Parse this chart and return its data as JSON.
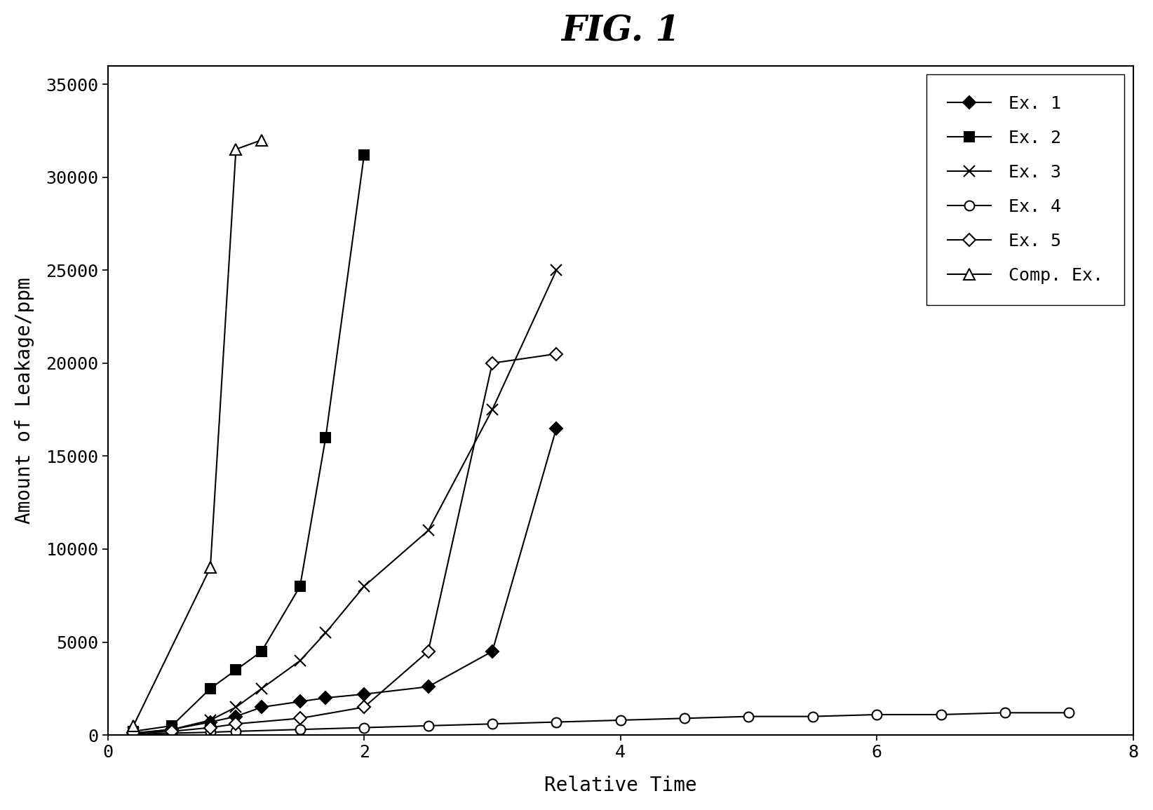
{
  "title": "FIG. 1",
  "xlabel": "Relative Time",
  "ylabel": "Amount of Leakage/ppm",
  "xlim": [
    0,
    8
  ],
  "ylim": [
    0,
    36000
  ],
  "yticks": [
    0,
    5000,
    10000,
    15000,
    20000,
    25000,
    30000,
    35000
  ],
  "xticks": [
    0,
    2,
    4,
    6,
    8
  ],
  "series": {
    "Ex. 1": {
      "x": [
        0.2,
        0.5,
        0.8,
        1.0,
        1.2,
        1.5,
        1.7,
        2.0,
        2.5,
        3.0,
        3.5
      ],
      "y": [
        100,
        300,
        700,
        1000,
        1500,
        1800,
        2000,
        2200,
        2600,
        4500,
        16500
      ],
      "marker": "D",
      "markersize": 9,
      "color": "#000000",
      "filled": true,
      "linewidth": 1.5
    },
    "Ex. 2": {
      "x": [
        0.2,
        0.5,
        0.8,
        1.0,
        1.2,
        1.5,
        1.7,
        2.0
      ],
      "y": [
        200,
        500,
        2500,
        3500,
        4500,
        8000,
        16000,
        31200
      ],
      "marker": "s",
      "markersize": 10,
      "color": "#000000",
      "filled": true,
      "linewidth": 1.5
    },
    "Ex. 3": {
      "x": [
        0.2,
        0.5,
        0.8,
        1.0,
        1.2,
        1.5,
        1.7,
        2.0,
        2.5,
        3.0,
        3.5
      ],
      "y": [
        100,
        300,
        800,
        1500,
        2500,
        4000,
        5500,
        8000,
        11000,
        17500,
        25000
      ],
      "marker": "x",
      "markersize": 12,
      "color": "#000000",
      "filled": true,
      "linewidth": 1.5
    },
    "Ex. 4": {
      "x": [
        0.2,
        0.5,
        0.8,
        1.0,
        1.5,
        2.0,
        2.5,
        3.0,
        3.5,
        4.0,
        4.5,
        5.0,
        5.5,
        6.0,
        6.5,
        7.0,
        7.5
      ],
      "y": [
        50,
        100,
        150,
        200,
        300,
        400,
        500,
        600,
        700,
        800,
        900,
        1000,
        1000,
        1100,
        1100,
        1200,
        1200
      ],
      "marker": "o",
      "markersize": 10,
      "color": "#000000",
      "filled": false,
      "linewidth": 1.5
    },
    "Ex. 5": {
      "x": [
        0.2,
        0.5,
        0.8,
        1.0,
        1.5,
        2.0,
        2.5,
        3.0,
        3.5
      ],
      "y": [
        100,
        200,
        400,
        600,
        900,
        1500,
        4500,
        20000,
        20500
      ],
      "marker": "D",
      "markersize": 9,
      "color": "#000000",
      "filled": false,
      "linewidth": 1.5
    },
    "Comp. Ex.": {
      "x": [
        0.2,
        0.8,
        1.0,
        1.2
      ],
      "y": [
        500,
        9000,
        31500,
        32000
      ],
      "marker": "^",
      "markersize": 12,
      "color": "#000000",
      "filled": false,
      "linewidth": 1.5
    }
  },
  "legend_order": [
    "Ex. 1",
    "Ex. 2",
    "Ex. 3",
    "Ex. 4",
    "Ex. 5",
    "Comp. Ex."
  ],
  "background_color": "#ffffff",
  "title_fontsize": 36,
  "label_fontsize": 20,
  "tick_fontsize": 18,
  "legend_fontsize": 18
}
